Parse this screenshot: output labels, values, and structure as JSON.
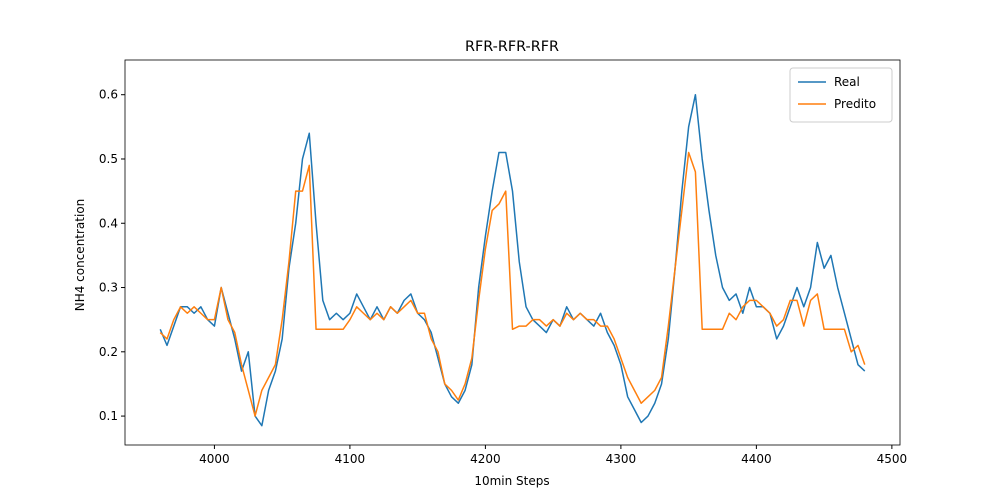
{
  "chart_data": {
    "type": "line",
    "title": "RFR-RFR-RFR",
    "x_label": "10min Steps",
    "y_label": "NH4 concentration",
    "x": [
      3960,
      3965,
      3970,
      3975,
      3980,
      3985,
      3990,
      3995,
      4000,
      4005,
      4010,
      4015,
      4020,
      4025,
      4030,
      4035,
      4040,
      4045,
      4050,
      4055,
      4060,
      4065,
      4070,
      4075,
      4080,
      4085,
      4090,
      4095,
      4100,
      4105,
      4110,
      4115,
      4120,
      4125,
      4130,
      4135,
      4140,
      4145,
      4150,
      4155,
      4160,
      4165,
      4170,
      4175,
      4180,
      4185,
      4190,
      4195,
      4200,
      4205,
      4210,
      4215,
      4220,
      4225,
      4230,
      4235,
      4240,
      4245,
      4250,
      4255,
      4260,
      4265,
      4270,
      4275,
      4280,
      4285,
      4290,
      4295,
      4300,
      4305,
      4310,
      4315,
      4320,
      4325,
      4330,
      4335,
      4340,
      4345,
      4350,
      4355,
      4360,
      4365,
      4370,
      4375,
      4380,
      4385,
      4390,
      4395,
      4400,
      4405,
      4410,
      4415,
      4420,
      4425,
      4430,
      4435,
      4440,
      4445,
      4450,
      4455,
      4460,
      4465,
      4470,
      4475,
      4480
    ],
    "series": [
      {
        "name": "Real",
        "color": "#1f77b4",
        "values": [
          0.235,
          0.21,
          0.24,
          0.27,
          0.27,
          0.26,
          0.27,
          0.25,
          0.24,
          0.3,
          0.26,
          0.22,
          0.17,
          0.2,
          0.1,
          0.085,
          0.14,
          0.17,
          0.22,
          0.33,
          0.4,
          0.5,
          0.54,
          0.4,
          0.28,
          0.25,
          0.26,
          0.25,
          0.26,
          0.29,
          0.27,
          0.25,
          0.27,
          0.25,
          0.27,
          0.26,
          0.28,
          0.29,
          0.26,
          0.25,
          0.23,
          0.19,
          0.15,
          0.13,
          0.12,
          0.14,
          0.18,
          0.3,
          0.38,
          0.45,
          0.51,
          0.51,
          0.45,
          0.34,
          0.27,
          0.25,
          0.24,
          0.23,
          0.25,
          0.24,
          0.27,
          0.25,
          0.26,
          0.25,
          0.24,
          0.26,
          0.23,
          0.21,
          0.18,
          0.13,
          0.11,
          0.09,
          0.1,
          0.12,
          0.15,
          0.22,
          0.33,
          0.45,
          0.55,
          0.6,
          0.5,
          0.42,
          0.35,
          0.3,
          0.28,
          0.29,
          0.26,
          0.3,
          0.27,
          0.27,
          0.26,
          0.22,
          0.24,
          0.27,
          0.3,
          0.27,
          0.3,
          0.37,
          0.33,
          0.35,
          0.3,
          0.26,
          0.22,
          0.18,
          0.17
        ]
      },
      {
        "name": "Predito",
        "color": "#ff7f0e",
        "values": [
          0.23,
          0.22,
          0.25,
          0.27,
          0.26,
          0.27,
          0.26,
          0.25,
          0.25,
          0.3,
          0.25,
          0.23,
          0.18,
          0.14,
          0.1,
          0.14,
          0.16,
          0.18,
          0.25,
          0.34,
          0.45,
          0.45,
          0.49,
          0.235,
          0.235,
          0.235,
          0.235,
          0.235,
          0.25,
          0.27,
          0.26,
          0.25,
          0.26,
          0.25,
          0.27,
          0.26,
          0.27,
          0.28,
          0.26,
          0.26,
          0.22,
          0.2,
          0.15,
          0.14,
          0.125,
          0.15,
          0.19,
          0.28,
          0.36,
          0.42,
          0.43,
          0.45,
          0.235,
          0.24,
          0.24,
          0.25,
          0.25,
          0.24,
          0.25,
          0.24,
          0.26,
          0.25,
          0.26,
          0.25,
          0.25,
          0.24,
          0.24,
          0.22,
          0.19,
          0.16,
          0.14,
          0.12,
          0.13,
          0.14,
          0.16,
          0.24,
          0.33,
          0.42,
          0.51,
          0.48,
          0.235,
          0.235,
          0.235,
          0.235,
          0.26,
          0.25,
          0.27,
          0.28,
          0.28,
          0.27,
          0.26,
          0.24,
          0.25,
          0.28,
          0.28,
          0.24,
          0.28,
          0.29,
          0.235,
          0.235,
          0.235,
          0.235,
          0.2,
          0.21,
          0.18
        ]
      }
    ],
    "xlim": [
      3934,
      4506
    ],
    "xticks": [
      4000,
      4100,
      4200,
      4300,
      4400,
      4500
    ],
    "ylim": [
      0.055,
      0.654
    ],
    "yticks": [
      0.1,
      0.2,
      0.3,
      0.4,
      0.5,
      0.6
    ],
    "grid": false,
    "legend": "upper right"
  }
}
